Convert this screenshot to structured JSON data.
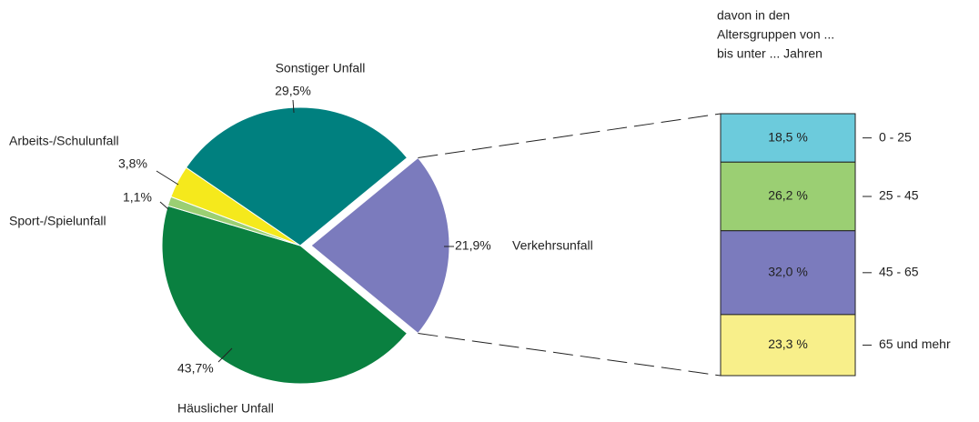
{
  "chart_data": [
    {
      "type": "pie",
      "categories": [
        "Verkehrsunfall",
        "Häuslicher Unfall",
        "Sport-/Spielunfall",
        "Arbeits-/Schulunfall",
        "Sonstiger Unfall"
      ],
      "values": [
        21.9,
        43.7,
        1.1,
        3.8,
        29.5
      ],
      "value_labels": [
        "21,9%",
        "43,7%",
        "1,1%",
        "3,8%",
        "29,5%"
      ],
      "colors": [
        "#7b7bbd",
        "#0a8040",
        "#9bcf73",
        "#f5e91c",
        "#00807f"
      ],
      "exploded": "Verkehrsunfall"
    },
    {
      "type": "bar",
      "stacked": true,
      "title": [
        "davon in den",
        "Altersgruppen von ...",
        "bis unter ... Jahren"
      ],
      "categories": [
        "0 - 25",
        "25 - 45",
        "45 - 65",
        "65 und mehr"
      ],
      "values": [
        18.5,
        26.2,
        32.0,
        23.3
      ],
      "value_labels": [
        "18,5 %",
        "26,2 %",
        "32,0 %",
        "23,3 %"
      ],
      "colors": [
        "#6ccbdc",
        "#9bcf73",
        "#7b7bbd",
        "#f8ef8a"
      ]
    }
  ]
}
